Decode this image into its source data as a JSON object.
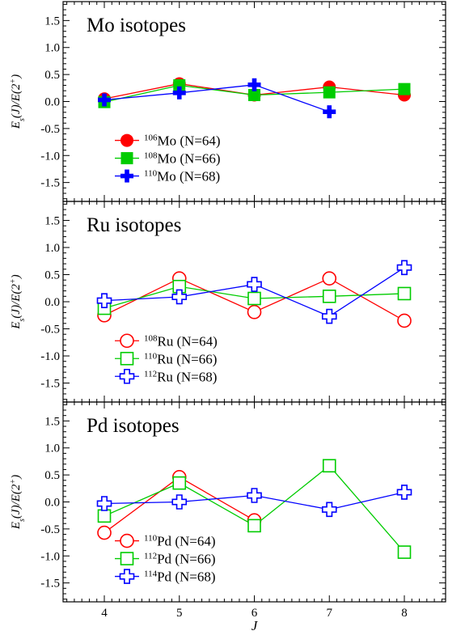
{
  "chart_data": [
    {
      "type": "line",
      "title": "Mo isotopes",
      "ylabel": {
        "a": "E",
        "sub": "s",
        "b": "(J)/E(2",
        "sup": "+",
        "c": ")"
      },
      "xlabel": "",
      "x": [
        4,
        5,
        6,
        7,
        8
      ],
      "ylim": [
        -1.85,
        1.85
      ],
      "xlim": [
        3.45,
        8.55
      ],
      "series": [
        {
          "name": {
            "mass": "106",
            "element": "Mo",
            "neutrons": " (N=64)"
          },
          "color": "#ff0000",
          "marker": "filled-circle",
          "values": [
            0.05,
            0.33,
            0.12,
            0.27,
            0.12
          ]
        },
        {
          "name": {
            "mass": "108",
            "element": "Mo",
            "neutrons": " (N=66)"
          },
          "color": "#00cc00",
          "marker": "filled-square",
          "values": [
            -0.01,
            0.3,
            0.12,
            0.17,
            0.23
          ]
        },
        {
          "name": {
            "mass": "110",
            "element": "Mo",
            "neutrons": " (N=68)"
          },
          "color": "#0000ff",
          "marker": "filled-plus",
          "values": [
            0.03,
            0.16,
            0.31,
            -0.19,
            null
          ]
        }
      ]
    },
    {
      "type": "line",
      "title": "Ru isotopes",
      "ylabel": {
        "a": "E",
        "sub": "s",
        "b": "(J)/E(2",
        "sup": "+",
        "c": ")"
      },
      "xlabel": "",
      "x": [
        4,
        5,
        6,
        7,
        8
      ],
      "ylim": [
        -1.85,
        1.85
      ],
      "xlim": [
        3.45,
        8.55
      ],
      "series": [
        {
          "name": {
            "mass": "108",
            "element": "Ru",
            "neutrons": " (N=64)"
          },
          "color": "#ff0000",
          "marker": "open-circle",
          "values": [
            -0.25,
            0.43,
            -0.19,
            0.43,
            -0.35
          ]
        },
        {
          "name": {
            "mass": "110",
            "element": "Ru",
            "neutrons": " (N=66)"
          },
          "color": "#00cc00",
          "marker": "open-square",
          "values": [
            -0.12,
            0.28,
            0.06,
            0.1,
            0.15
          ]
        },
        {
          "name": {
            "mass": "112",
            "element": "Ru",
            "neutrons": " (N=68)"
          },
          "color": "#0000ff",
          "marker": "open-plus",
          "values": [
            0.02,
            0.09,
            0.32,
            -0.27,
            0.63
          ]
        }
      ]
    },
    {
      "type": "line",
      "title": "Pd isotopes",
      "ylabel": {
        "a": "E",
        "sub": "s",
        "b": "(J)/E(2",
        "sup": "+",
        "c": ")"
      },
      "xlabel": "J",
      "x": [
        4,
        5,
        6,
        7,
        8
      ],
      "ylim": [
        -1.85,
        1.85
      ],
      "xlim": [
        3.45,
        8.55
      ],
      "series": [
        {
          "name": {
            "mass": "110",
            "element": "Pd",
            "neutrons": " (N=64)"
          },
          "color": "#ff0000",
          "marker": "open-circle",
          "values": [
            -0.57,
            0.46,
            -0.34,
            null,
            null
          ]
        },
        {
          "name": {
            "mass": "112",
            "element": "Pd",
            "neutrons": " (N=66)"
          },
          "color": "#00cc00",
          "marker": "open-square",
          "values": [
            -0.26,
            0.35,
            -0.44,
            0.67,
            -0.93
          ]
        },
        {
          "name": {
            "mass": "114",
            "element": "Pd",
            "neutrons": " (N=68)"
          },
          "color": "#0000ff",
          "marker": "open-plus",
          "values": [
            -0.03,
            0.0,
            0.12,
            -0.14,
            0.18
          ]
        }
      ]
    }
  ],
  "ticks": {
    "y": [
      {
        "v": 1.5,
        "label": "1.5"
      },
      {
        "v": 1.0,
        "label": "1.0"
      },
      {
        "v": 0.5,
        "label": "0.5"
      },
      {
        "v": 0.0,
        "label": "0.0"
      },
      {
        "v": -0.5,
        "label": "-0.5"
      },
      {
        "v": -1.0,
        "label": "-1.0"
      },
      {
        "v": -1.5,
        "label": "-1.5"
      }
    ],
    "x": [
      {
        "v": 4,
        "label": "4"
      },
      {
        "v": 5,
        "label": "5"
      },
      {
        "v": 6,
        "label": "6"
      },
      {
        "v": 7,
        "label": "7"
      },
      {
        "v": 8,
        "label": "8"
      }
    ]
  }
}
